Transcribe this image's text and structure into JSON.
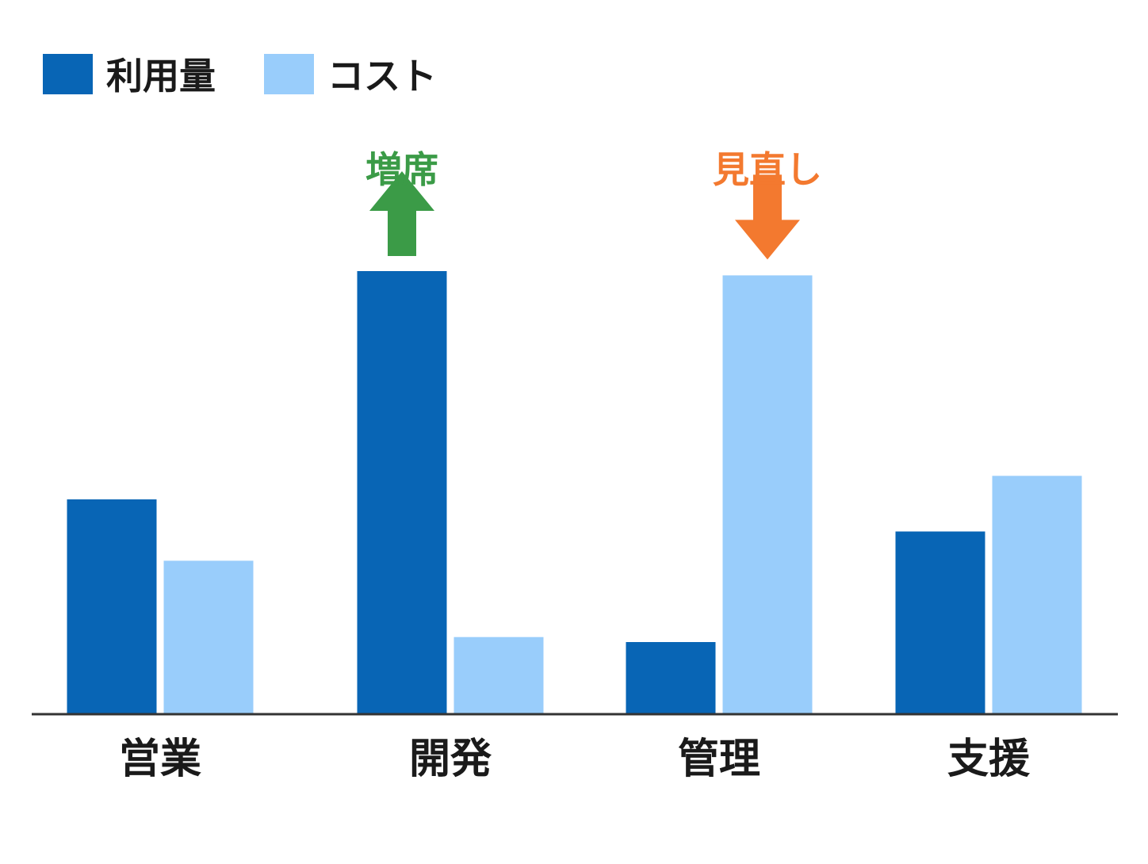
{
  "chart_data": {
    "type": "bar",
    "title": "",
    "xlabel": "",
    "ylabel": "",
    "categories": [
      "営業",
      "開発",
      "管理",
      "支援"
    ],
    "series": [
      {
        "name": "利用量",
        "color": "#0865B5",
        "values": [
          30,
          62,
          10,
          25.5
        ]
      },
      {
        "name": "コスト",
        "color": "#99CDFB",
        "values": [
          21.4,
          10.7,
          61.4,
          33.3
        ]
      }
    ],
    "ylim": [
      0,
      70
    ],
    "y_axis_shown": false,
    "grid": false,
    "legend": {
      "position": "top-left"
    },
    "annotations": [
      {
        "text": "増席",
        "category": "開発",
        "series": "利用量",
        "direction": "up",
        "color": "#3B9B47"
      },
      {
        "text": "見直し",
        "category": "管理",
        "series": "コスト",
        "direction": "down",
        "color": "#F3792F"
      }
    ],
    "baseline_color": "#333333"
  }
}
